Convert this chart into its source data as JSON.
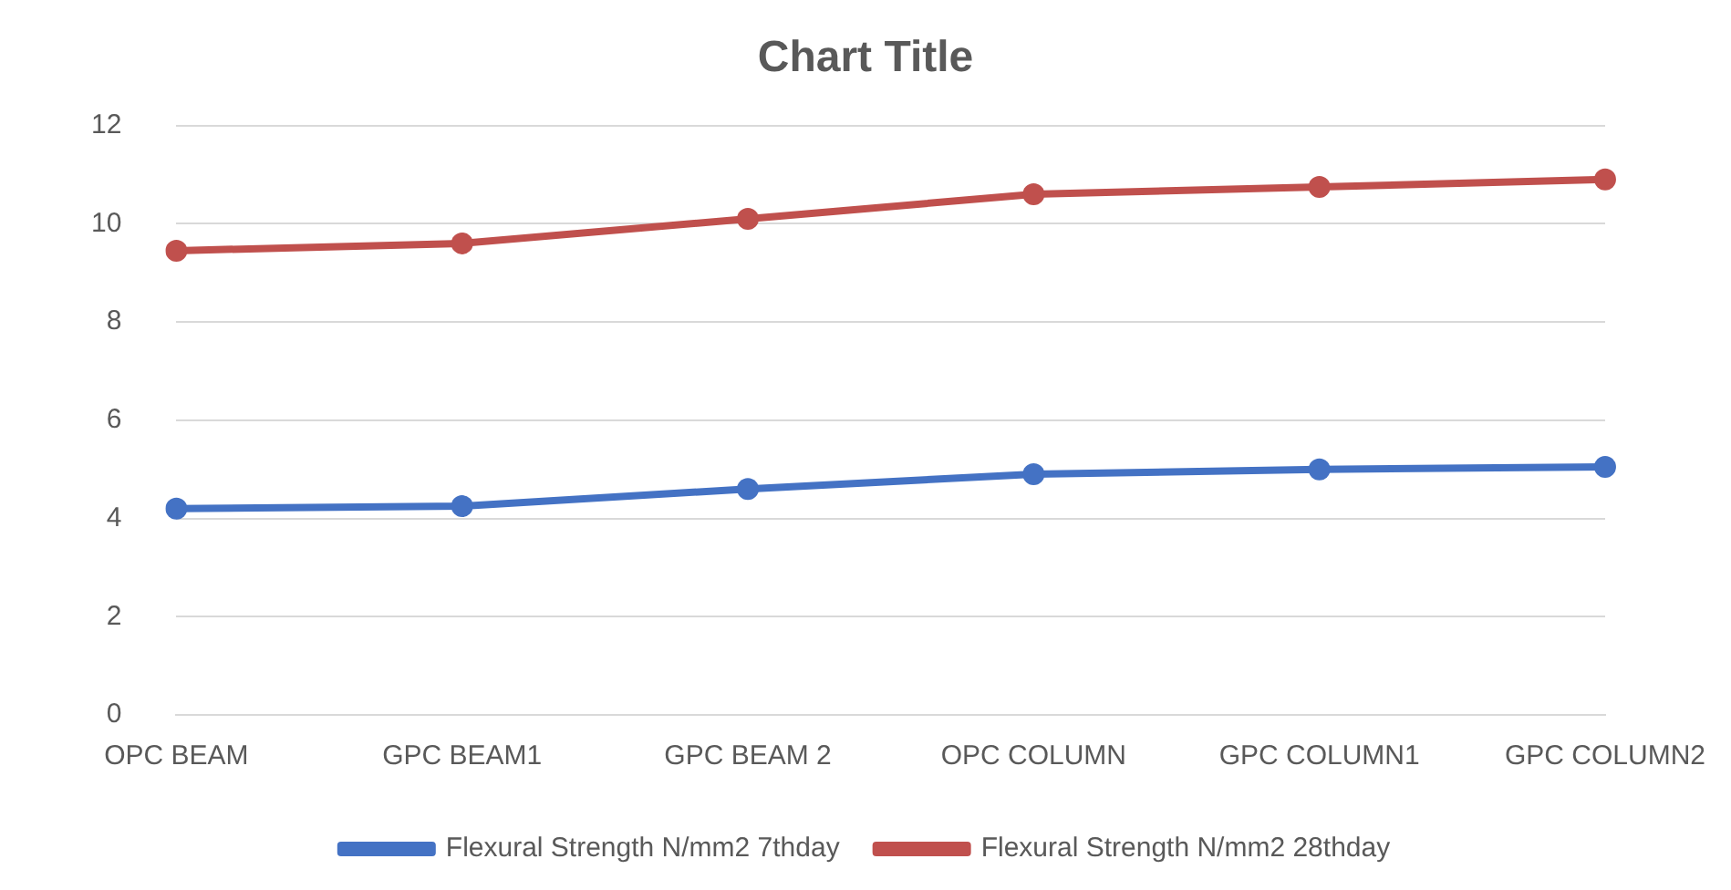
{
  "chart_data": {
    "type": "line",
    "title": "Chart Title",
    "categories": [
      "OPC BEAM",
      "GPC BEAM1",
      "GPC BEAM 2",
      "OPC COLUMN",
      "GPC COLUMN1",
      "GPC COLUMN2"
    ],
    "series": [
      {
        "name": "Flexural Strength N/mm2 7thday",
        "color": "#4472c4",
        "values": [
          4.2,
          4.25,
          4.6,
          4.9,
          5.0,
          5.05
        ]
      },
      {
        "name": "Flexural Strength N/mm2 28thday",
        "color": "#c0504d",
        "values": [
          9.45,
          9.6,
          10.1,
          10.6,
          10.75,
          10.9
        ]
      }
    ],
    "ylim": [
      0,
      12
    ],
    "yticks": [
      0,
      2,
      4,
      6,
      8,
      10,
      12
    ],
    "grid": "y",
    "legend": "bottom",
    "marker": "circle",
    "line_style": "solid"
  }
}
